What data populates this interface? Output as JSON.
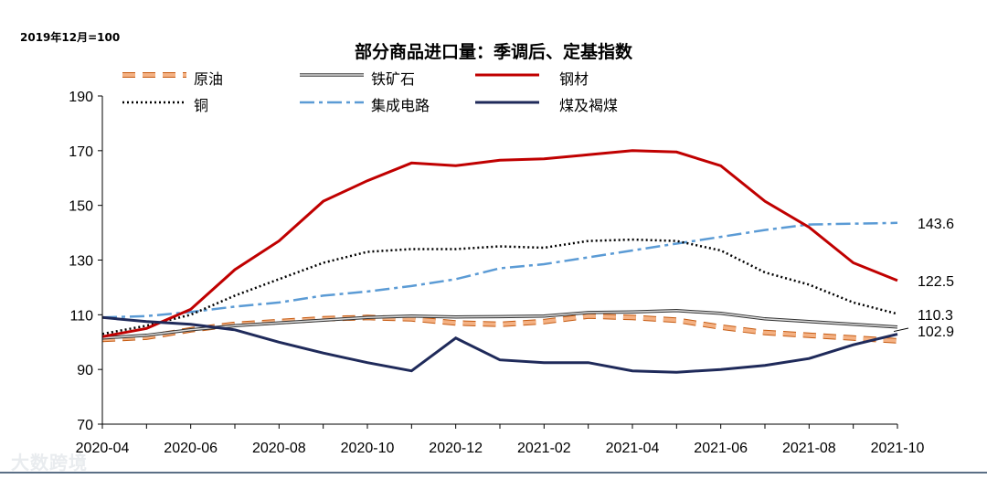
{
  "chart_data": {
    "type": "line",
    "title": "部分商品进口量：季调后、定基指数",
    "unit_note": "2019年12月=100",
    "xlabel": "",
    "ylabel": "",
    "ylim": [
      70,
      190
    ],
    "yticks": [
      70,
      90,
      110,
      130,
      150,
      170,
      190
    ],
    "x": [
      "2020-04",
      "2020-05",
      "2020-06",
      "2020-07",
      "2020-08",
      "2020-09",
      "2020-10",
      "2020-11",
      "2020-12",
      "2021-01",
      "2021-02",
      "2021-03",
      "2021-04",
      "2021-05",
      "2021-06",
      "2021-07",
      "2021-08",
      "2021-09",
      "2021-10"
    ],
    "xtick_labels": [
      "2020-04",
      "2020-06",
      "2020-08",
      "2020-10",
      "2020-12",
      "2021-02",
      "2021-04",
      "2021-06",
      "2021-08",
      "2021-10"
    ],
    "legend_position": "top",
    "series": [
      {
        "name": "原油",
        "color": "#f4b183",
        "style": "dashed-outline",
        "values": [
          101.0,
          101.8,
          104.5,
          106.5,
          107.5,
          108.5,
          109.0,
          108.5,
          107.0,
          106.5,
          107.5,
          109.5,
          109.0,
          108.0,
          105.5,
          103.5,
          102.5,
          101.5,
          100.5
        ]
      },
      {
        "name": "铁矿石",
        "color": "#777777",
        "style": "solid-outline",
        "values": [
          101.5,
          102.5,
          104.5,
          106.0,
          107.0,
          108.0,
          109.0,
          109.5,
          109.2,
          109.3,
          109.5,
          110.8,
          111.0,
          111.5,
          110.5,
          108.5,
          107.5,
          106.5,
          105.5
        ]
      },
      {
        "name": "钢材",
        "color": "#c00000",
        "style": "solid",
        "values": [
          102.0,
          105.0,
          112.0,
          126.5,
          137.0,
          151.5,
          159.0,
          165.5,
          164.5,
          166.5,
          167.0,
          168.5,
          170.0,
          169.5,
          164.5,
          151.5,
          142.0,
          129.0,
          122.5
        ]
      },
      {
        "name": "铜",
        "color": "#000000",
        "style": "dotted",
        "values": [
          103.0,
          106.0,
          110.0,
          117.0,
          123.0,
          129.0,
          133.0,
          134.0,
          134.0,
          135.0,
          134.5,
          137.0,
          137.5,
          137.0,
          133.5,
          125.5,
          121.0,
          114.5,
          110.3
        ]
      },
      {
        "name": "集成电路",
        "color": "#5b9bd5",
        "style": "dash-dot",
        "values": [
          109.0,
          109.5,
          111.0,
          113.0,
          114.5,
          117.0,
          118.5,
          120.5,
          123.0,
          127.0,
          128.5,
          131.0,
          133.5,
          136.0,
          138.5,
          141.0,
          143.0,
          143.3,
          143.6
        ]
      },
      {
        "name": "煤及褐煤",
        "color": "#1f2a5a",
        "style": "solid",
        "values": [
          109.0,
          107.5,
          106.5,
          104.5,
          100.0,
          96.0,
          92.5,
          89.5,
          101.5,
          93.5,
          92.5,
          92.5,
          89.5,
          89.0,
          90.0,
          91.5,
          94.0,
          99.0,
          102.9
        ]
      }
    ],
    "end_labels": [
      {
        "series": "集成电路",
        "text": "143.6",
        "value": 143.6
      },
      {
        "series": "钢材",
        "text": "122.5",
        "value": 122.5
      },
      {
        "series": "铜",
        "text": "110.3",
        "value": 110.3
      },
      {
        "series": "煤及褐煤",
        "text": "102.9",
        "value": 102.9
      }
    ]
  },
  "legend": [
    {
      "label": "原油"
    },
    {
      "label": "铁矿石"
    },
    {
      "label": "钢材"
    },
    {
      "label": "铜"
    },
    {
      "label": "集成电路"
    },
    {
      "label": "煤及褐煤"
    }
  ],
  "watermark": "大数跨境"
}
